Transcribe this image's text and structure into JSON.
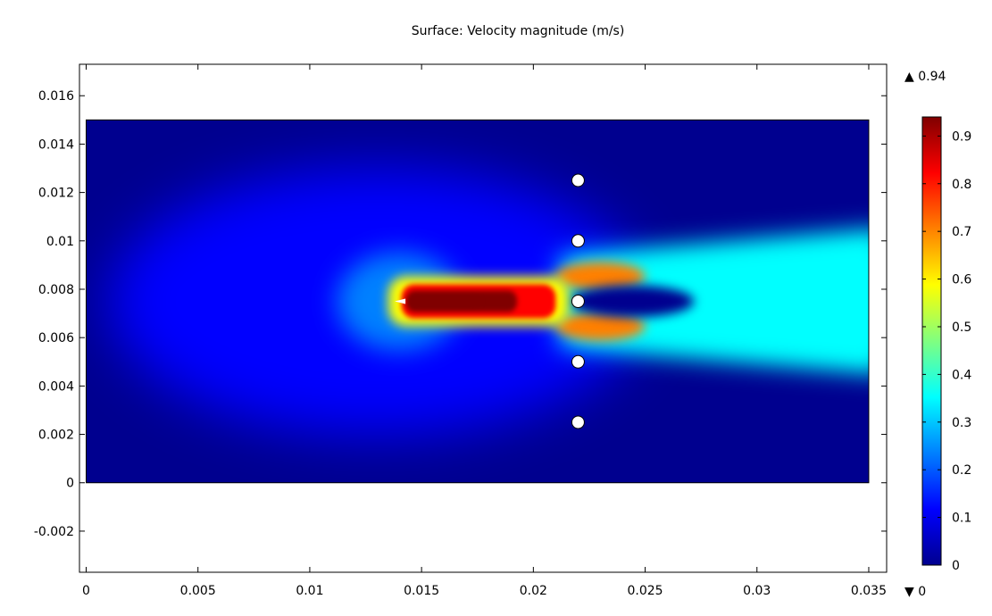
{
  "chart_data": {
    "type": "heatmap",
    "title": "Surface: Velocity magnitude (m/s)",
    "xlabel": "",
    "ylabel": "",
    "xlim": [
      -0.0003,
      0.0358
    ],
    "ylim": [
      -0.0037,
      0.0173
    ],
    "x_ticks": [
      0,
      0.005,
      0.01,
      0.015,
      0.02,
      0.025,
      0.03,
      0.035
    ],
    "x_tick_labels": [
      "0",
      "0.005",
      "0.01",
      "0.015",
      "0.02",
      "0.025",
      "0.03",
      "0.035"
    ],
    "y_ticks": [
      -0.002,
      0,
      0.002,
      0.004,
      0.006,
      0.008,
      0.01,
      0.012,
      0.014,
      0.016
    ],
    "y_tick_labels": [
      "-0.002",
      "0",
      "0.002",
      "0.004",
      "0.006",
      "0.008",
      "0.01",
      "0.012",
      "0.014",
      "0.016"
    ],
    "domain": {
      "x": [
        0,
        0.035
      ],
      "y": [
        0,
        0.015
      ]
    },
    "nozzle": {
      "x": 0.014,
      "y": 0.0075
    },
    "jet": {
      "x_start": 0.0141,
      "x_end": 0.021,
      "y": 0.0075,
      "peak": 0.94
    },
    "cylinders": [
      {
        "x": 0.022,
        "y": 0.0125
      },
      {
        "x": 0.022,
        "y": 0.01
      },
      {
        "x": 0.022,
        "y": 0.0075
      },
      {
        "x": 0.022,
        "y": 0.005
      },
      {
        "x": 0.022,
        "y": 0.0025
      }
    ],
    "colorbar": {
      "min": 0,
      "max": 0.94,
      "max_label": "▲ 0.94",
      "min_label": "▼ 0",
      "ticks": [
        0,
        0.1,
        0.2,
        0.3,
        0.4,
        0.5,
        0.6,
        0.7,
        0.8,
        0.9
      ],
      "tick_labels": [
        "0",
        "0.1",
        "0.2",
        "0.3",
        "0.4",
        "0.5",
        "0.6",
        "0.7",
        "0.8",
        "0.9"
      ],
      "colormap": [
        "#00008f",
        "#0000ff",
        "#0080ff",
        "#00ffff",
        "#80ff80",
        "#ffff00",
        "#ff8000",
        "#ff0000",
        "#800000"
      ]
    }
  }
}
